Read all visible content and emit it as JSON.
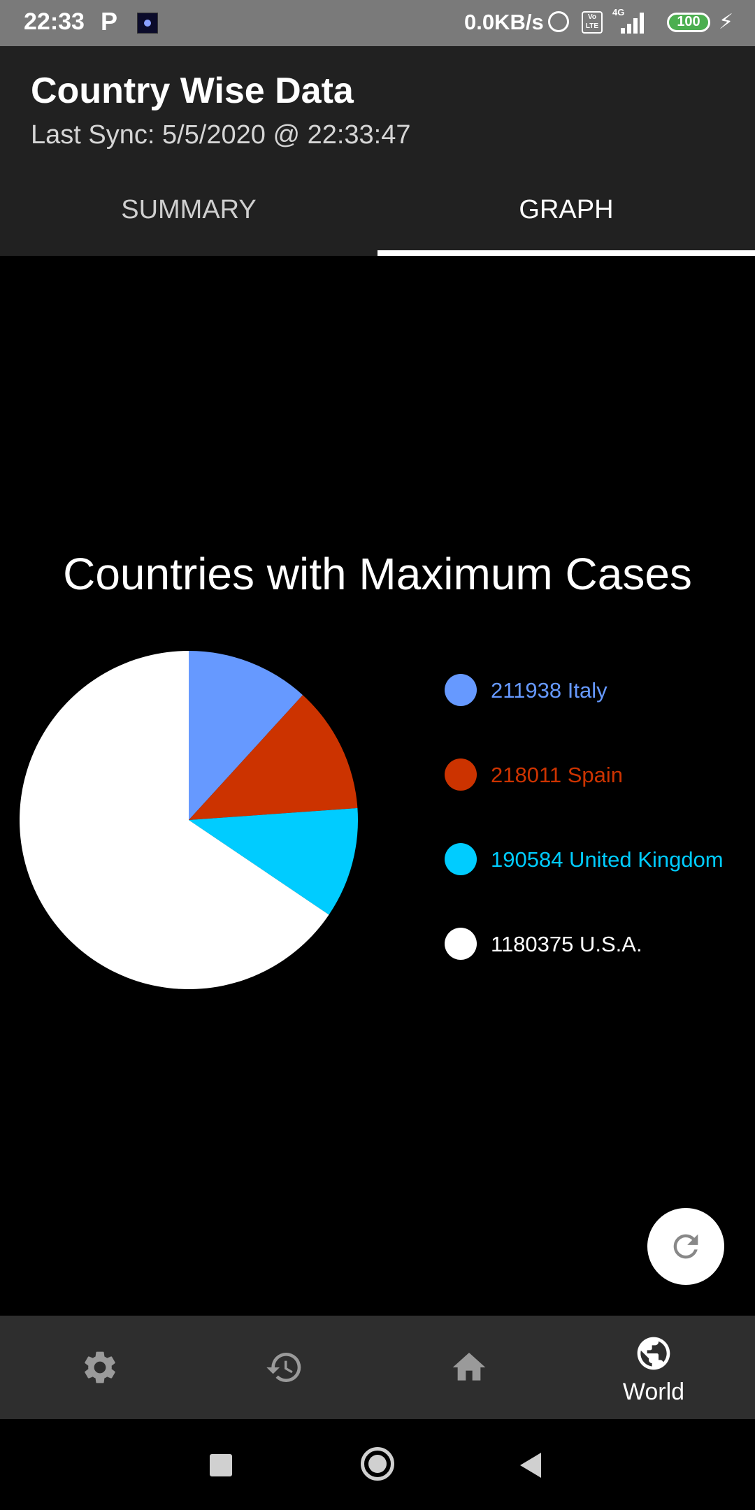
{
  "status_bar": {
    "time": "22:33",
    "notification_letter": "P",
    "net_speed": "0.0KB/s",
    "volte_label": "Vo LTE",
    "network_type": "4G",
    "battery": "100"
  },
  "app_bar": {
    "title": "Country Wise Data",
    "subtitle": "Last Sync: 5/5/2020 @ 22:33:47"
  },
  "tabs": [
    {
      "label": "SUMMARY",
      "selected": false
    },
    {
      "label": "GRAPH",
      "selected": true
    }
  ],
  "chart_data": {
    "type": "pie",
    "title": "Countries with Maximum Cases",
    "slices": [
      {
        "label": "211938 Italy",
        "value": 211938,
        "color": "#6699ff"
      },
      {
        "label": "218011 Spain",
        "value": 218011,
        "color": "#cc3300"
      },
      {
        "label": "190584 United Kingdom",
        "value": 190584,
        "color": "#00ccff"
      },
      {
        "label": "1180375 U.S.A.",
        "value": 1180375,
        "color": "#ffffff"
      }
    ],
    "legend_position": "right"
  },
  "fab": {
    "icon": "refresh-icon"
  },
  "bottom_nav": {
    "items": [
      {
        "icon": "settings-icon",
        "label": ""
      },
      {
        "icon": "history-icon",
        "label": ""
      },
      {
        "icon": "home-icon",
        "label": ""
      },
      {
        "icon": "world-icon",
        "label": "World",
        "selected": true
      }
    ]
  },
  "colors": {
    "app_bar": "#212121",
    "background": "#000000",
    "bottom_nav": "#2e2e2e",
    "status_bar": "#7a7a7a"
  }
}
